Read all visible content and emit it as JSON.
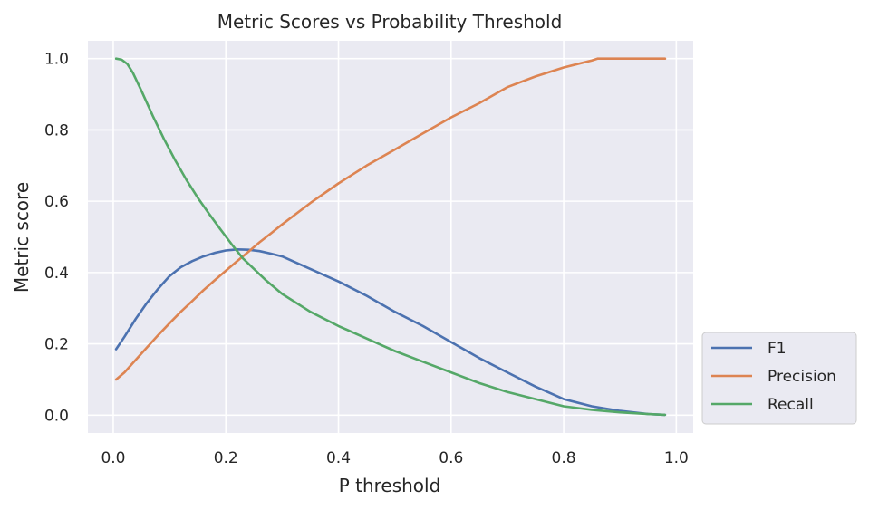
{
  "chart_data": {
    "type": "line",
    "title": "Metric Scores vs Probability Threshold",
    "xlabel": "P threshold",
    "ylabel": "Metric score",
    "xlim": [
      -0.045,
      1.03
    ],
    "ylim": [
      -0.05,
      1.05
    ],
    "xticks": [
      0.0,
      0.2,
      0.4,
      0.6,
      0.8,
      1.0
    ],
    "xtick_labels": [
      "0.0",
      "0.2",
      "0.4",
      "0.6",
      "0.8",
      "1.0"
    ],
    "yticks": [
      0.0,
      0.2,
      0.4,
      0.6,
      0.8,
      1.0
    ],
    "ytick_labels": [
      "0.0",
      "0.2",
      "0.4",
      "0.6",
      "0.8",
      "1.0"
    ],
    "grid": true,
    "legend_position": "outside-right-bottom",
    "series": [
      {
        "name": "F1",
        "color": "#4c72b0",
        "x": [
          0.005,
          0.02,
          0.04,
          0.06,
          0.08,
          0.1,
          0.12,
          0.14,
          0.16,
          0.18,
          0.2,
          0.22,
          0.24,
          0.26,
          0.28,
          0.3,
          0.35,
          0.4,
          0.45,
          0.5,
          0.55,
          0.6,
          0.65,
          0.7,
          0.75,
          0.8,
          0.85,
          0.9,
          0.95,
          0.98
        ],
        "y": [
          0.185,
          0.22,
          0.27,
          0.315,
          0.355,
          0.39,
          0.415,
          0.432,
          0.445,
          0.455,
          0.462,
          0.465,
          0.464,
          0.46,
          0.453,
          0.445,
          0.41,
          0.375,
          0.335,
          0.29,
          0.25,
          0.205,
          0.16,
          0.12,
          0.08,
          0.045,
          0.025,
          0.012,
          0.003,
          0.001
        ]
      },
      {
        "name": "Precision",
        "color": "#dd8452",
        "x": [
          0.005,
          0.02,
          0.04,
          0.06,
          0.08,
          0.1,
          0.12,
          0.14,
          0.16,
          0.18,
          0.2,
          0.22,
          0.24,
          0.26,
          0.28,
          0.3,
          0.35,
          0.4,
          0.45,
          0.5,
          0.55,
          0.6,
          0.65,
          0.7,
          0.75,
          0.8,
          0.85,
          0.86,
          0.9,
          0.95,
          0.98
        ],
        "y": [
          0.1,
          0.12,
          0.155,
          0.19,
          0.225,
          0.258,
          0.29,
          0.32,
          0.35,
          0.378,
          0.405,
          0.432,
          0.458,
          0.485,
          0.51,
          0.535,
          0.595,
          0.65,
          0.7,
          0.745,
          0.79,
          0.835,
          0.875,
          0.92,
          0.95,
          0.975,
          0.995,
          1.0,
          1.0,
          1.0,
          1.0
        ]
      },
      {
        "name": "Recall",
        "color": "#55a868",
        "x": [
          0.005,
          0.015,
          0.025,
          0.035,
          0.05,
          0.07,
          0.09,
          0.11,
          0.13,
          0.15,
          0.17,
          0.19,
          0.21,
          0.23,
          0.25,
          0.27,
          0.3,
          0.35,
          0.4,
          0.45,
          0.5,
          0.55,
          0.6,
          0.65,
          0.7,
          0.75,
          0.8,
          0.85,
          0.9,
          0.95,
          0.98
        ],
        "y": [
          1.0,
          0.997,
          0.985,
          0.96,
          0.91,
          0.84,
          0.775,
          0.715,
          0.66,
          0.61,
          0.565,
          0.522,
          0.48,
          0.44,
          0.41,
          0.38,
          0.34,
          0.29,
          0.25,
          0.215,
          0.18,
          0.15,
          0.12,
          0.09,
          0.065,
          0.045,
          0.025,
          0.015,
          0.008,
          0.003,
          0.001
        ]
      }
    ]
  }
}
